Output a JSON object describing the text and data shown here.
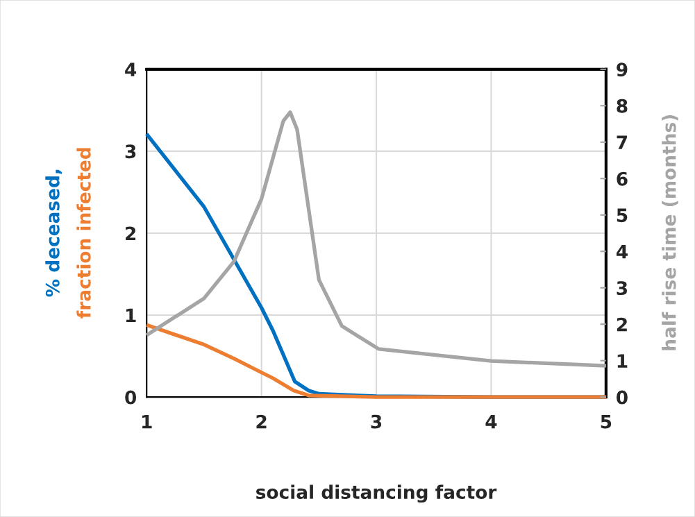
{
  "chart_data": {
    "type": "line",
    "xlabel": "social distancing factor",
    "ylabel": "% deceased,\nfraction infected",
    "y2label": "half rise time (months)",
    "xlim": [
      1,
      5
    ],
    "xticks": [
      1,
      2,
      3,
      4,
      5
    ],
    "ylim": [
      0,
      4
    ],
    "yticks": [
      0,
      1,
      2,
      3,
      4
    ],
    "y2lim": [
      0,
      9
    ],
    "y2ticks": [
      0,
      1,
      2,
      3,
      4,
      5,
      6,
      7,
      8,
      9
    ],
    "grid": true,
    "line_style": "solid",
    "marker": "none",
    "series": [
      {
        "color": "#0070c0",
        "x": [
          1,
          1.5,
          2,
          2.1,
          2.29,
          2.41,
          2.5,
          3,
          4,
          5
        ],
        "values": [
          3.21,
          2.32,
          1.09,
          0.81,
          0.19,
          0.08,
          0.04,
          0.01,
          0,
          0
        ]
      },
      {
        "color": "#ed7d31",
        "x": [
          1,
          1.5,
          1.76,
          2,
          2.1,
          2.28,
          2.41,
          3,
          4,
          5
        ],
        "values": [
          0.88,
          0.64,
          0.47,
          0.3,
          0.23,
          0.08,
          0.02,
          0,
          0,
          0
        ]
      },
      {
        "color": "#a5a5a5",
        "axis": "y2",
        "x": [
          1,
          1.5,
          1.76,
          2,
          2.19,
          2.25,
          2.31,
          2.5,
          2.7,
          3.02,
          4,
          5
        ],
        "values": [
          1.7,
          2.71,
          3.72,
          5.44,
          7.58,
          7.82,
          7.35,
          3.22,
          1.95,
          1.32,
          0.99,
          0.86
        ]
      }
    ]
  }
}
